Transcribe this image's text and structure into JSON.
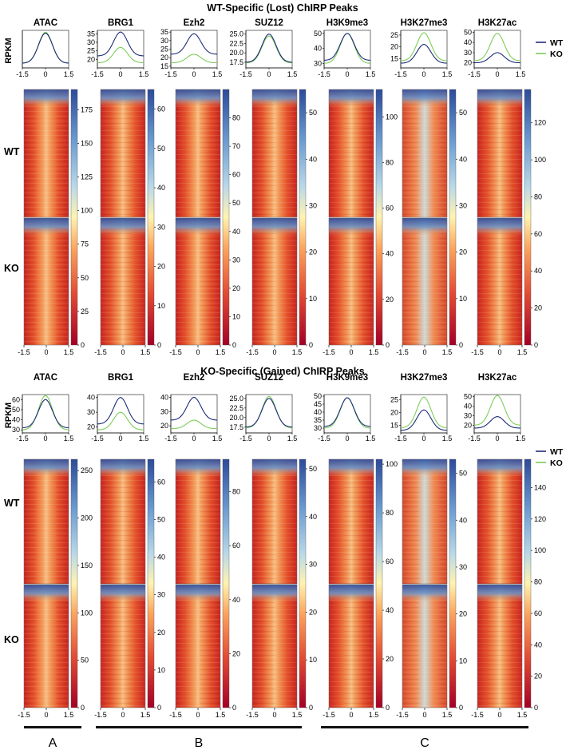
{
  "colors": {
    "wt_line": "#1f2d7a",
    "ko_line": "#7ccd5a",
    "heat_low": "#b2182b",
    "heat_mid": "#fff3b0",
    "heat_high": "#2c5aa0",
    "axis": "#111111",
    "bar": "#111111"
  },
  "chart_data": [
    {
      "type": "heatmap",
      "panel_title": "WT-Specific (Lost) ChIRP Peaks",
      "profile_ylabel": "RPKM",
      "row_labels": [
        "WT",
        "KO"
      ],
      "legend": [
        "WT",
        "KO"
      ],
      "x_ticks": [
        "-1.5",
        "0",
        "1.5"
      ],
      "tracks": [
        {
          "name": "ATAC",
          "profile_ylim": [
            10,
            50
          ],
          "profile_ticks": [],
          "wt_peak": 47,
          "ko_peak": 48,
          "wt_base": 15,
          "ko_base": 15,
          "colorbar_max": 190,
          "colorbar_ticks": [
            "175",
            "150",
            "125",
            "100",
            "75",
            "50",
            "25",
            "0"
          ]
        },
        {
          "name": "BRG1",
          "profile_ylim": [
            15,
            37
          ],
          "profile_ticks": [
            "35",
            "30",
            "25",
            "20"
          ],
          "wt_peak": 36,
          "ko_peak": 27,
          "wt_base": 22,
          "ko_base": 18,
          "colorbar_max": 65,
          "colorbar_ticks": [
            "60",
            "50",
            "40",
            "30",
            "20",
            "10",
            "0"
          ]
        },
        {
          "name": "Ezh2",
          "profile_ylim": [
            14,
            36
          ],
          "profile_ticks": [
            "35",
            "30",
            "25",
            "20",
            "15"
          ],
          "wt_peak": 34,
          "ko_peak": 22,
          "wt_base": 22,
          "ko_base": 17,
          "colorbar_max": 90,
          "colorbar_ticks": [
            "80",
            "70",
            "60",
            "50",
            "40",
            "30",
            "20",
            "10",
            "0"
          ]
        },
        {
          "name": "SUZ12",
          "profile_ylim": [
            16,
            26
          ],
          "profile_ticks": [
            "25.0",
            "22.5",
            "20.0",
            "17.5"
          ],
          "wt_peak": 25,
          "ko_peak": 24.5,
          "wt_base": 17.5,
          "ko_base": 17.3,
          "colorbar_max": 55,
          "colorbar_ticks": [
            "50",
            "40",
            "30",
            "20",
            "10",
            "0"
          ]
        },
        {
          "name": "H3K9me3",
          "profile_ylim": [
            27,
            52
          ],
          "profile_ticks": [
            "50",
            "40",
            "30"
          ],
          "wt_peak": 50,
          "ko_peak": 50,
          "wt_base": 32,
          "ko_base": 30,
          "colorbar_max": 112,
          "colorbar_ticks": [
            "100",
            "80",
            "60",
            "40",
            "20",
            "0"
          ]
        },
        {
          "name": "H3K27me3",
          "profile_ylim": [
            11,
            27
          ],
          "profile_ticks": [
            "25",
            "20",
            "15"
          ],
          "wt_peak": 21,
          "ko_peak": 26,
          "wt_base": 13,
          "ko_base": 14,
          "colorbar_max": 55,
          "colorbar_ticks": [
            "50",
            "40",
            "30",
            "20",
            "10",
            "0"
          ]
        },
        {
          "name": "H3K27ac",
          "profile_ylim": [
            15,
            52
          ],
          "profile_ticks": [
            "50",
            "40",
            "30",
            "20"
          ],
          "wt_peak": 30,
          "ko_peak": 49,
          "wt_base": 20,
          "ko_base": 22,
          "colorbar_max": 138,
          "colorbar_ticks": [
            "120",
            "100",
            "80",
            "60",
            "40",
            "20",
            "0"
          ]
        }
      ]
    },
    {
      "type": "heatmap",
      "panel_title": "KO-Specific (Gained) ChIRP Peaks",
      "profile_ylabel": "RPKM",
      "row_labels": [
        "WT",
        "KO"
      ],
      "legend": [
        "WT",
        "KO"
      ],
      "x_ticks": [
        "-1.5",
        "0",
        "1.5"
      ],
      "tracks": [
        {
          "name": "ATAC",
          "profile_ylim": [
            27,
            65
          ],
          "profile_ticks": [
            "60",
            "50",
            "40",
            "30"
          ],
          "wt_peak": 60,
          "ko_peak": 64,
          "wt_base": 32,
          "ko_base": 30,
          "colorbar_max": 262,
          "colorbar_ticks": [
            "250",
            "200",
            "150",
            "100",
            "50",
            "0"
          ]
        },
        {
          "name": "BRG1",
          "profile_ylim": [
            16,
            42
          ],
          "profile_ticks": [
            "40",
            "30",
            "20"
          ],
          "wt_peak": 40,
          "ko_peak": 30,
          "wt_base": 22,
          "ko_base": 18,
          "colorbar_max": 66,
          "colorbar_ticks": [
            "60",
            "50",
            "40",
            "30",
            "20",
            "10",
            "0"
          ]
        },
        {
          "name": "Ezh2",
          "profile_ylim": [
            15,
            42
          ],
          "profile_ticks": [
            "40",
            "30",
            "20"
          ],
          "wt_peak": 40,
          "ko_peak": 24,
          "wt_base": 24,
          "ko_base": 18,
          "colorbar_max": 92,
          "colorbar_ticks": [
            "80",
            "60",
            "40",
            "20",
            "0"
          ]
        },
        {
          "name": "SUZ12",
          "profile_ylim": [
            16,
            26
          ],
          "profile_ticks": [
            "25.0",
            "22.5",
            "20.0",
            "17.5"
          ],
          "wt_peak": 25,
          "ko_peak": 25.5,
          "wt_base": 17.5,
          "ko_base": 17.3,
          "colorbar_max": 52,
          "colorbar_ticks": [
            "50",
            "40",
            "30",
            "20",
            "10",
            "0"
          ]
        },
        {
          "name": "H3K9me3",
          "profile_ylim": [
            27,
            51
          ],
          "profile_ticks": [
            "50",
            "45",
            "40",
            "35",
            "30"
          ],
          "wt_peak": 49,
          "ko_peak": 49,
          "wt_base": 31,
          "ko_base": 30,
          "colorbar_max": 102,
          "colorbar_ticks": [
            "100",
            "80",
            "60",
            "40",
            "20",
            "0"
          ]
        },
        {
          "name": "H3K27me3",
          "profile_ylim": [
            12,
            27
          ],
          "profile_ticks": [
            "25",
            "20",
            "15"
          ],
          "wt_peak": 21,
          "ko_peak": 26,
          "wt_base": 13,
          "ko_base": 14,
          "colorbar_max": 53,
          "colorbar_ticks": [
            "50",
            "40",
            "30",
            "20",
            "10",
            "0"
          ]
        },
        {
          "name": "H3K27ac",
          "profile_ylim": [
            12,
            52
          ],
          "profile_ticks": [
            "50",
            "40",
            "30",
            "20"
          ],
          "wt_peak": 29,
          "ko_peak": 51,
          "wt_base": 17,
          "ko_base": 20,
          "colorbar_max": 158,
          "colorbar_ticks": [
            "140",
            "120",
            "100",
            "80",
            "60",
            "40",
            "20",
            "0"
          ]
        }
      ]
    }
  ],
  "groups": [
    {
      "label": "A",
      "tracks": [
        0
      ]
    },
    {
      "label": "B",
      "tracks": [
        1,
        2,
        3
      ]
    },
    {
      "label": "C",
      "tracks": [
        4,
        5,
        6
      ]
    }
  ]
}
